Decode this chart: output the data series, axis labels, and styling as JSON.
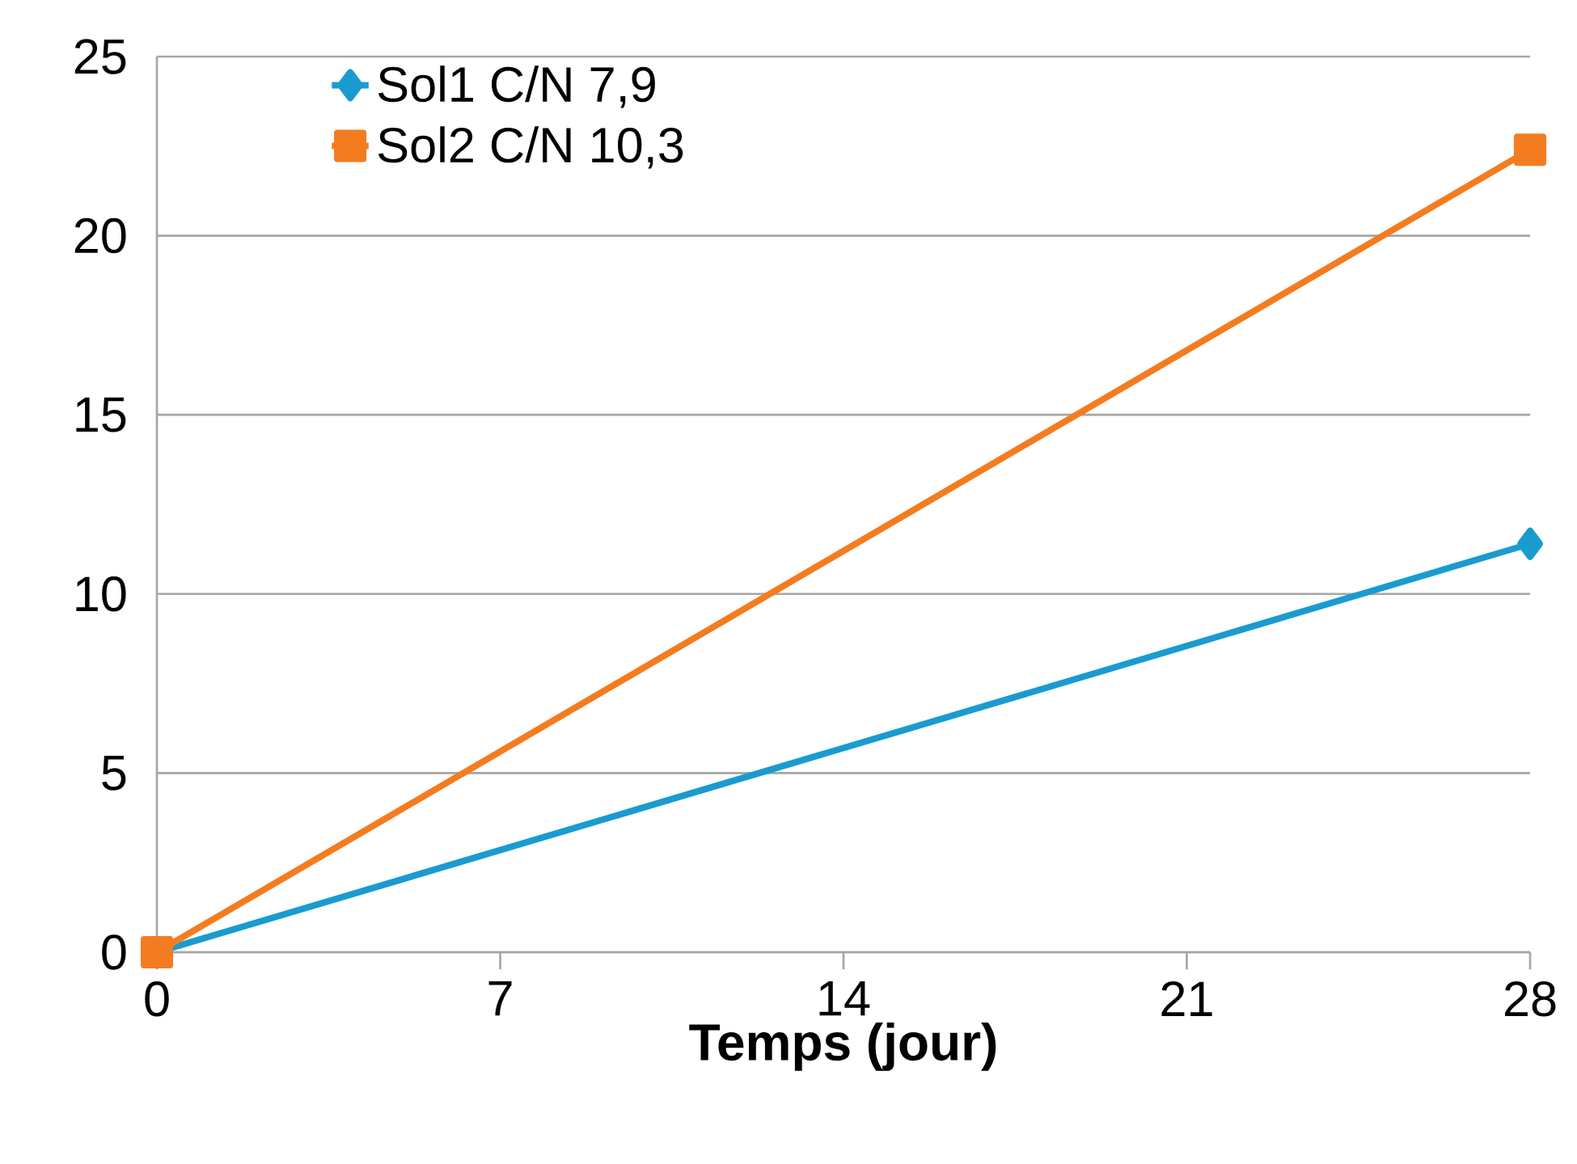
{
  "chart_data": {
    "type": "line",
    "xlabel": "Temps (jour)",
    "x": [
      0,
      28
    ],
    "series": [
      {
        "name": "Sol1 C/N 7,9",
        "color": "#1a9bd0",
        "marker": "diamond",
        "values": [
          0,
          11.4
        ]
      },
      {
        "name": "Sol2 C/N 10,3",
        "color": "#f47c20",
        "marker": "square",
        "values": [
          0,
          22.4
        ]
      }
    ],
    "xlim": [
      0,
      28
    ],
    "xticks": [
      0,
      7,
      14,
      21,
      28
    ],
    "ylim": [
      0,
      25
    ],
    "yticks": [
      0,
      5,
      10,
      15,
      20,
      25
    ],
    "grid": "y",
    "legend": "top left",
    "line_style": "solid"
  }
}
